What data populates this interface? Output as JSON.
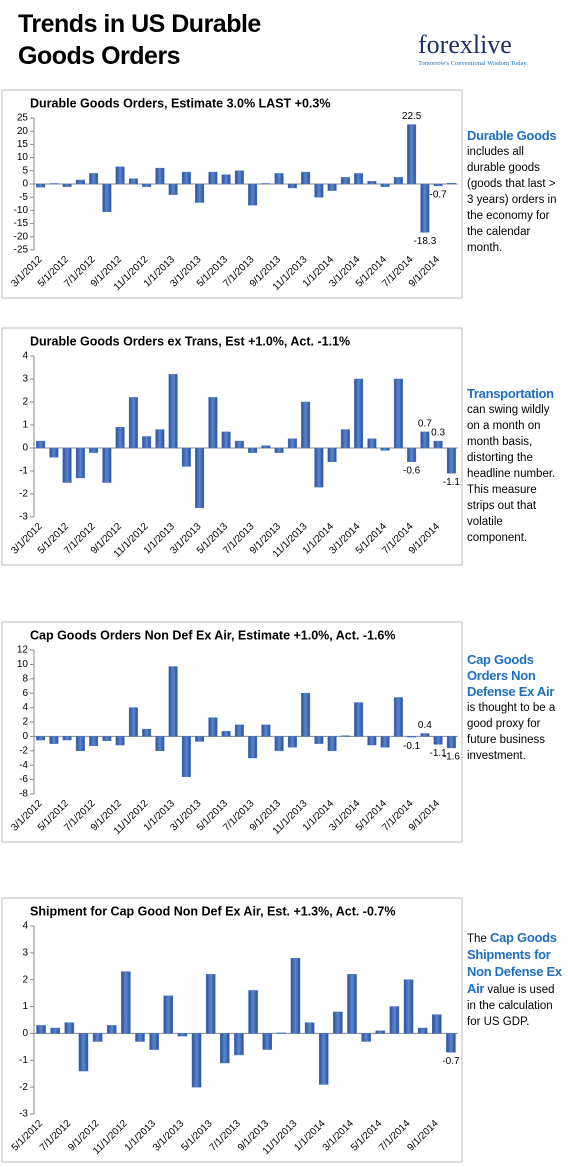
{
  "title": "Trends in US Durable Goods Orders",
  "logo": {
    "name": "forexlive",
    "tagline": "Tomorrow's Conventional Wisdom Today."
  },
  "notes": [
    {
      "heading": "Durable Goods",
      "body": "includes all durable goods (goods that last > 3 years) orders in the economy for the calendar month."
    },
    {
      "heading": "Transportation",
      "body": "can swing wildly on a month on month basis, distorting the headline number. This measure strips out that volatile component."
    },
    {
      "heading": "Cap Goods Orders Non Defense Ex Air",
      "body": "is thought to be a good proxy for future business investment."
    },
    {
      "lead": "The",
      "heading": "Cap Goods Shipments for Non Defense Ex Air",
      "body": "value is used in the calculation for US GDP."
    }
  ],
  "chart_data": [
    {
      "type": "bar",
      "title": "Durable Goods Orders, Estimate 3.0% LAST +0.3%",
      "color": "#4472c4",
      "categories": [
        "3/1/2012",
        null,
        "5/1/2012",
        null,
        "7/1/2012",
        null,
        "9/1/2012",
        null,
        "11/1/2012",
        null,
        "1/1/2013",
        null,
        "3/1/2013",
        null,
        "5/1/2013",
        null,
        "7/1/2013",
        null,
        "9/1/2013",
        null,
        "11/1/2013",
        null,
        "1/1/2014",
        null,
        "3/1/2014",
        null,
        "5/1/2014",
        null,
        "7/1/2014",
        null,
        "9/1/2014",
        null
      ],
      "values": [
        -1.2,
        0.2,
        -1,
        1.5,
        4,
        -10.5,
        6.5,
        2,
        -1,
        6,
        -4,
        4.5,
        -7,
        4.5,
        3.5,
        5,
        -8,
        0.2,
        4,
        -1.5,
        4.5,
        -5,
        -2.5,
        2.5,
        4,
        1,
        -1,
        2.5,
        22.5,
        -18.3,
        -0.7,
        0.3
      ],
      "value_labels": [
        null,
        null,
        null,
        null,
        null,
        null,
        null,
        null,
        null,
        null,
        null,
        null,
        null,
        null,
        null,
        null,
        null,
        null,
        null,
        null,
        null,
        null,
        null,
        null,
        null,
        null,
        null,
        null,
        "22.5",
        "-18.3",
        "-0.7",
        null
      ],
      "ylim": [
        -25,
        25
      ],
      "yticks": [
        -25,
        -20,
        -15,
        -10,
        -5,
        0,
        5,
        10,
        15,
        20,
        25
      ]
    },
    {
      "type": "bar",
      "title": "Durable Goods Orders ex Trans, Est +1.0%, Act. -1.1%",
      "color": "#4472c4",
      "categories": [
        "3/1/2012",
        null,
        "5/1/2012",
        null,
        "7/1/2012",
        null,
        "9/1/2012",
        null,
        "11/1/2012",
        null,
        "1/1/2013",
        null,
        "3/1/2013",
        null,
        "5/1/2013",
        null,
        "7/1/2013",
        null,
        "9/1/2013",
        null,
        "11/1/2013",
        null,
        "1/1/2014",
        null,
        "3/1/2014",
        null,
        "5/1/2014",
        null,
        "7/1/2014",
        null,
        "9/1/2014",
        null
      ],
      "values": [
        0.3,
        -0.4,
        -1.5,
        -1.3,
        -0.2,
        -1.5,
        0.9,
        2.2,
        0.5,
        0.8,
        3.2,
        -0.8,
        -2.6,
        2.2,
        0.7,
        0.3,
        -0.2,
        0.1,
        -0.2,
        0.4,
        2.0,
        -1.7,
        -0.6,
        0.8,
        3.0,
        0.4,
        -0.1,
        3.0,
        -0.6,
        0.7,
        0.3,
        -1.1
      ],
      "value_labels": [
        null,
        null,
        null,
        null,
        null,
        null,
        null,
        null,
        null,
        null,
        null,
        null,
        null,
        null,
        null,
        null,
        null,
        null,
        null,
        null,
        null,
        null,
        null,
        null,
        null,
        null,
        null,
        null,
        "-0.6",
        "0.7",
        "0.3",
        "-1.1"
      ],
      "ylim": [
        -3,
        4
      ],
      "yticks": [
        -3,
        -2,
        -1,
        0,
        1,
        2,
        3,
        4
      ]
    },
    {
      "type": "bar",
      "title": "Cap Goods Orders Non Def Ex Air, Estimate +1.0%, Act. -1.6%",
      "color": "#4472c4",
      "categories": [
        "3/1/2012",
        null,
        "5/1/2012",
        null,
        "7/1/2012",
        null,
        "9/1/2012",
        null,
        "11/1/2012",
        null,
        "1/1/2013",
        null,
        "3/1/2013",
        null,
        "5/1/2013",
        null,
        "7/1/2013",
        null,
        "9/1/2013",
        null,
        "11/1/2013",
        null,
        "1/1/2014",
        null,
        "3/1/2014",
        null,
        "5/1/2014",
        null,
        "7/1/2014",
        null,
        "9/1/2014",
        null
      ],
      "values": [
        -0.5,
        -1,
        -0.5,
        -2,
        -1.3,
        -0.6,
        -1.2,
        4,
        1,
        -2,
        9.7,
        -5.6,
        -0.7,
        2.6,
        0.7,
        1.6,
        -3,
        1.6,
        -2,
        -1.5,
        6,
        -1,
        -2,
        0.1,
        4.7,
        -1.2,
        -1.5,
        5.4,
        -0.1,
        0.4,
        -1.1,
        -1.6
      ],
      "value_labels": [
        null,
        null,
        null,
        null,
        null,
        null,
        null,
        null,
        null,
        null,
        null,
        null,
        null,
        null,
        null,
        null,
        null,
        null,
        null,
        null,
        null,
        null,
        null,
        null,
        null,
        null,
        null,
        null,
        "-0.1",
        "0.4",
        "-1.1",
        "-1.6"
      ],
      "ylim": [
        -8,
        12
      ],
      "yticks": [
        -8,
        -6,
        -4,
        -2,
        0,
        2,
        4,
        6,
        8,
        10,
        12
      ]
    },
    {
      "type": "bar",
      "title": "Shipment for Cap Good Non Def Ex Air,  Est. +1.3%, Act. -0.7%",
      "color": "#4472c4",
      "categories": [
        "5/1/2012",
        null,
        "7/1/2012",
        null,
        "9/1/2012",
        null,
        "11/1/2012",
        null,
        "1/1/2013",
        null,
        "3/1/2013",
        null,
        "5/1/2013",
        null,
        "7/1/2013",
        null,
        "9/1/2013",
        null,
        "11/1/2013",
        null,
        "1/1/2014",
        null,
        "3/1/2014",
        null,
        "5/1/2014",
        null,
        "7/1/2014",
        null,
        "9/1/2014",
        null
      ],
      "values": [
        0.3,
        0.2,
        0.4,
        -1.4,
        -0.3,
        0.3,
        2.3,
        -0.3,
        -0.6,
        1.4,
        -0.1,
        -2.0,
        2.2,
        -1.1,
        -0.8,
        1.6,
        -0.6,
        0.02,
        2.8,
        0.4,
        -1.9,
        0.8,
        2.2,
        -0.3,
        0.1,
        1.0,
        2.0,
        0.2,
        0.7,
        -0.7
      ],
      "value_labels": [
        null,
        null,
        null,
        null,
        null,
        null,
        null,
        null,
        null,
        null,
        null,
        null,
        null,
        null,
        null,
        null,
        null,
        null,
        null,
        null,
        null,
        null,
        null,
        null,
        null,
        null,
        null,
        null,
        null,
        "-0.7"
      ],
      "ylim": [
        -3,
        4
      ],
      "yticks": [
        -3,
        -2,
        -1,
        0,
        1,
        2,
        3,
        4
      ]
    }
  ]
}
